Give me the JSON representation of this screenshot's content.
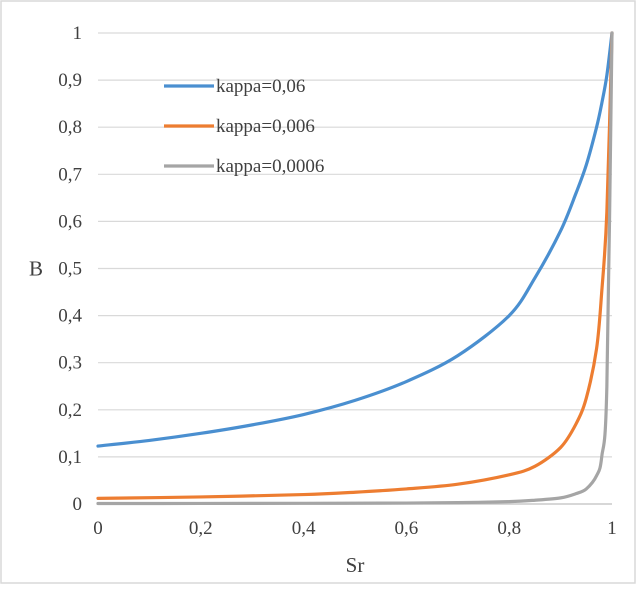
{
  "chart_data": {
    "type": "line",
    "title": "",
    "xlabel": "Sr",
    "ylabel": "B",
    "xlim": [
      0,
      1
    ],
    "ylim": [
      0,
      1
    ],
    "x_ticks": [
      "0",
      "0,2",
      "0,4",
      "0,6",
      "0,8",
      "1"
    ],
    "y_ticks": [
      "0",
      "0,1",
      "0,2",
      "0,3",
      "0,4",
      "0,5",
      "0,6",
      "0,7",
      "0,8",
      "0,9",
      "1"
    ],
    "grid": "horizontal",
    "legend_position": "top-left",
    "series": [
      {
        "name": "kappa=0,06",
        "color": "#4a8fd0",
        "x": [
          0,
          0.1,
          0.2,
          0.3,
          0.4,
          0.5,
          0.6,
          0.7,
          0.8,
          0.85,
          0.9,
          0.93,
          0.95,
          0.97,
          0.98,
          0.99,
          1.0
        ],
        "y": [
          0.123,
          0.135,
          0.15,
          0.168,
          0.19,
          0.22,
          0.26,
          0.315,
          0.4,
          0.48,
          0.58,
          0.66,
          0.72,
          0.8,
          0.85,
          0.91,
          1.0
        ]
      },
      {
        "name": "kappa=0,006",
        "color": "#ed7d31",
        "x": [
          0,
          0.2,
          0.4,
          0.5,
          0.6,
          0.7,
          0.8,
          0.85,
          0.9,
          0.93,
          0.95,
          0.97,
          0.98,
          0.99,
          1.0
        ],
        "y": [
          0.012,
          0.015,
          0.02,
          0.025,
          0.032,
          0.042,
          0.062,
          0.08,
          0.12,
          0.17,
          0.225,
          0.33,
          0.45,
          0.62,
          1.0
        ]
      },
      {
        "name": "kappa=0,0006",
        "color": "#a5a5a5",
        "x": [
          0,
          0.2,
          0.4,
          0.6,
          0.7,
          0.8,
          0.85,
          0.9,
          0.93,
          0.95,
          0.97,
          0.98,
          0.99,
          1.0
        ],
        "y": [
          0.001,
          0.0012,
          0.0015,
          0.002,
          0.003,
          0.005,
          0.008,
          0.013,
          0.022,
          0.032,
          0.06,
          0.1,
          0.25,
          1.0
        ]
      }
    ]
  }
}
